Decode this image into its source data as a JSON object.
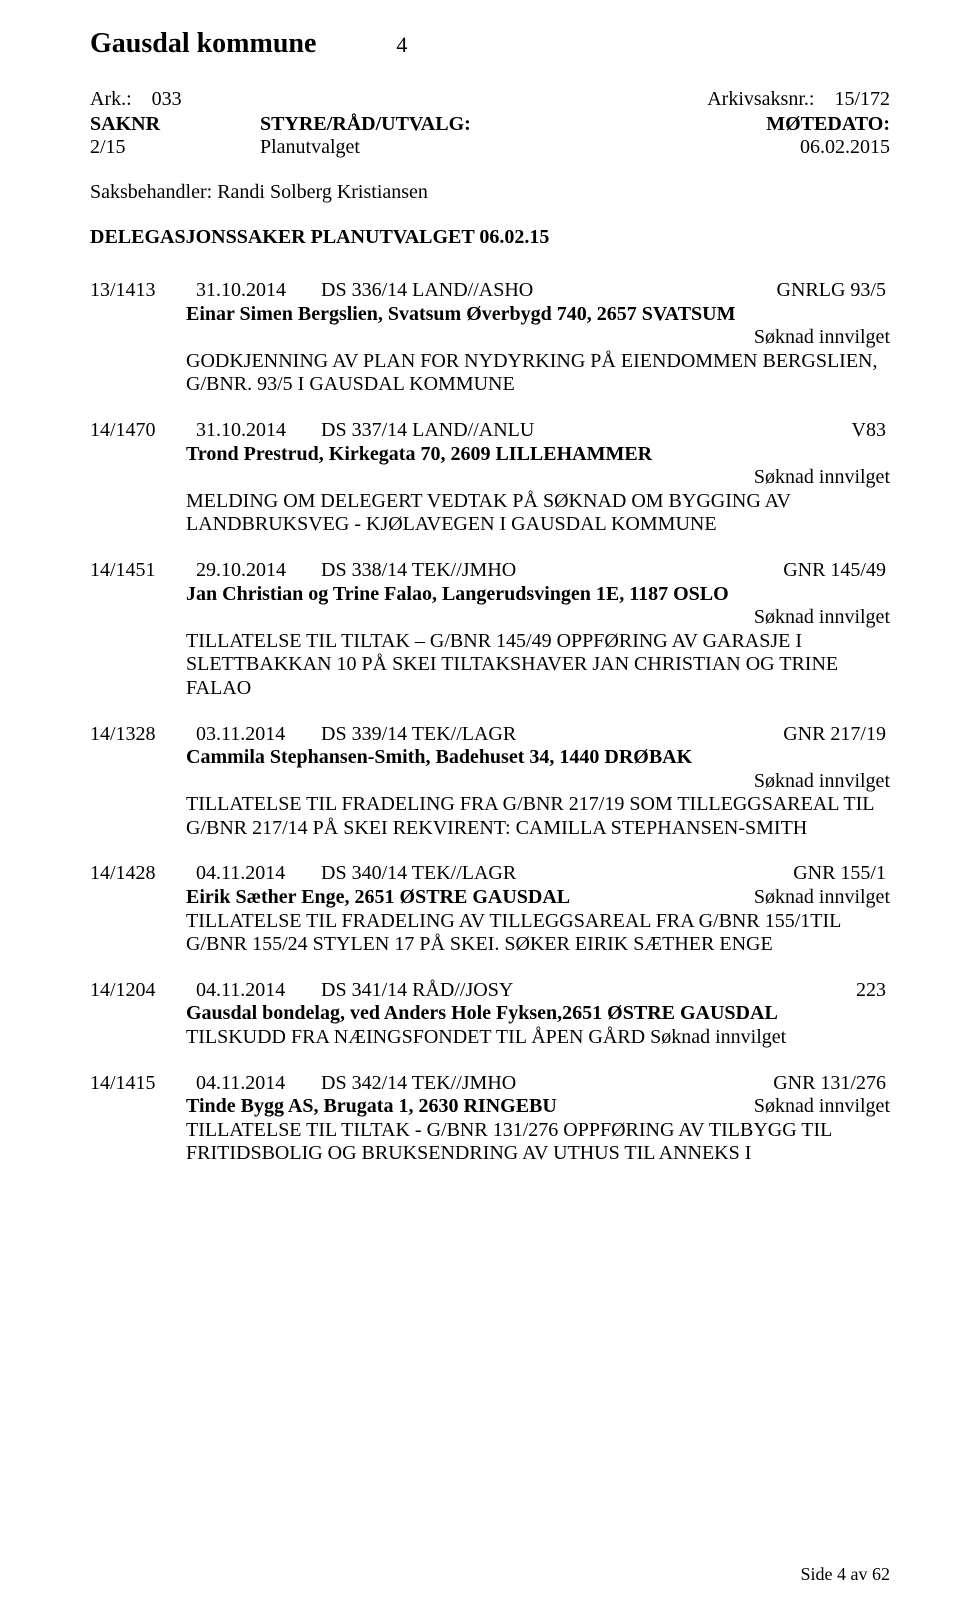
{
  "header": {
    "title": "Gausdal kommune",
    "page_num": "4"
  },
  "meta": {
    "ark_label": "Ark.:",
    "ark_val": "033",
    "saksnr_label": "Arkivsaksnr.:",
    "saksnr_val": "15/172"
  },
  "table": {
    "h1": "SAKNR",
    "h2": "STYRE/RÅD/UTVALG:",
    "h3": "MØTEDATO:",
    "r1": "2/15",
    "r2": "Planutvalget",
    "r3": "06.02.2015"
  },
  "caseworker": "Saksbehandler: Randi Solberg Kristiansen",
  "doc_title": "DELEGASJONSSAKER PLANUTVALGET 06.02.15",
  "entries": [
    {
      "ref": "13/1413",
      "date": "31.10.2014",
      "ds": "DS 336/14",
      "dept": "LAND//ASHO",
      "code": "GNRLG 93/5",
      "bold_line": "Einar Simen Bergslien, Svatsum Øverbygd 740, 2657 SVATSUM",
      "status_inline": false,
      "status": "Søknad innvilget",
      "desc": "GODKJENNING AV PLAN FOR NYDYRKING PÅ EIENDOMMEN BERGSLIEN, G/BNR. 93/5 I GAUSDAL KOMMUNE",
      "tail_status": ""
    },
    {
      "ref": "14/1470",
      "date": "31.10.2014",
      "ds": "DS 337/14",
      "dept": "LAND//ANLU",
      "code": "V83",
      "bold_line": "Trond Prestrud, Kirkegata 70, 2609 LILLEHAMMER",
      "status_inline": false,
      "status": "Søknad innvilget",
      "desc": "MELDING OM DELEGERT VEDTAK PÅ SØKNAD OM BYGGING AV LANDBRUKSVEG - KJØLAVEGEN I GAUSDAL KOMMUNE",
      "tail_status": ""
    },
    {
      "ref": "14/1451",
      "date": "29.10.2014",
      "ds": "DS 338/14",
      "dept": "TEK//JMHO",
      "code": "GNR 145/49",
      "bold_line": "Jan Christian og Trine Falao, Langerudsvingen 1E, 1187 OSLO",
      "status_inline": false,
      "status": "Søknad innvilget",
      "desc": "TILLATELSE TIL TILTAK – G/BNR 145/49 OPPFØRING AV GARASJE I SLETTBAKKAN 10 PÅ SKEI TILTAKSHAVER JAN CHRISTIAN OG TRINE FALAO",
      "tail_status": ""
    },
    {
      "ref": "14/1328",
      "date": "03.11.2014",
      "ds": "DS 339/14",
      "dept": "TEK//LAGR",
      "code": "GNR 217/19",
      "bold_line": "Cammila Stephansen-Smith, Badehuset 34, 1440 DRØBAK",
      "status_inline": false,
      "status": "Søknad innvilget",
      "desc": "TILLATELSE TIL FRADELING FRA G/BNR 217/19 SOM TILLEGGSAREAL TIL G/BNR 217/14 PÅ SKEI REKVIRENT: CAMILLA STEPHANSEN-SMITH",
      "tail_status": ""
    },
    {
      "ref": "14/1428",
      "date": "04.11.2014",
      "ds": "DS 340/14",
      "dept": "TEK//LAGR",
      "code": "GNR 155/1",
      "bold_line": "Eirik Sæther Enge, 2651 ØSTRE GAUSDAL",
      "status_inline": true,
      "status": "Søknad innvilget",
      "desc": "TILLATELSE TIL FRADELING AV TILLEGGSAREAL FRA  G/BNR 155/1TIL G/BNR 155/24 STYLEN 17 PÅ SKEI.  SØKER EIRIK SÆTHER ENGE",
      "tail_status": ""
    },
    {
      "ref": "14/1204",
      "date": "04.11.2014",
      "ds": "DS 341/14",
      "dept": "RÅD//JOSY",
      "code": "223",
      "bold_line": "Gausdal bondelag, ved Anders Hole Fyksen,2651 ØSTRE GAUSDAL",
      "status_inline": false,
      "status": "",
      "desc": "TILSKUDD FRA NÆINGSFONDET TIL ÅPEN GÅRD",
      "tail_status": "Søknad innvilget"
    },
    {
      "ref": "14/1415",
      "date": "04.11.2014",
      "ds": "DS 342/14",
      "dept": "TEK//JMHO",
      "code": "GNR 131/276",
      "bold_line": "Tinde Bygg AS, Brugata 1, 2630 RINGEBU",
      "status_inline": true,
      "status": "Søknad innvilget",
      "desc": "TILLATELSE TIL TILTAK - G/BNR 131/276 OPPFØRING AV TILBYGG TIL FRITIDSBOLIG OG BRUKSENDRING AV UTHUS TIL ANNEKS I",
      "tail_status": ""
    }
  ],
  "footer": "Side 4 av 62"
}
